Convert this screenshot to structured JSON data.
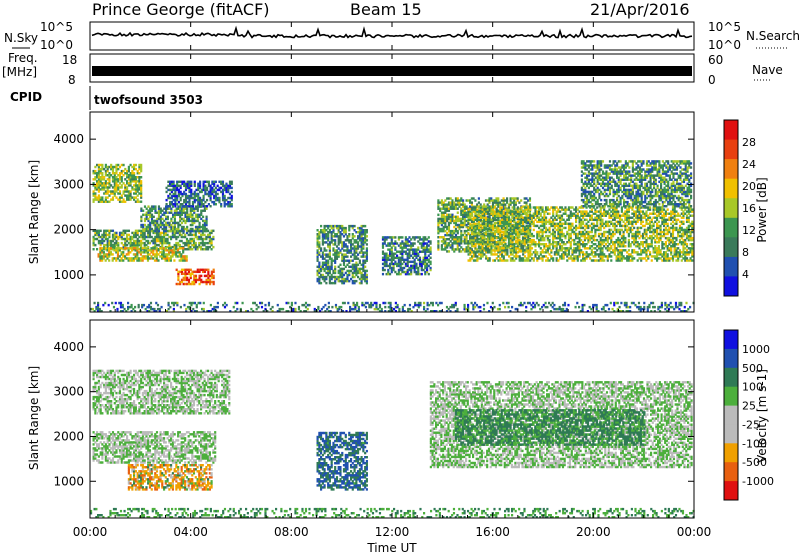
{
  "header": {
    "title": "Prince George (fitACF)",
    "beam": "Beam 15",
    "date": "21/Apr/2016"
  },
  "top_panels": {
    "nsky_label": "N.Sky",
    "nsearch_label": "N.Search",
    "noise_ticks_left": [
      "10^5",
      "10^0"
    ],
    "noise_ticks_right": [
      "10^5",
      "10^0"
    ],
    "freq_label_1": "Freq.",
    "freq_label_2": "[MHz]",
    "freq_ticks": [
      "18",
      "8"
    ],
    "nave_label": "Nave",
    "nave_ticks": [
      "60",
      "0"
    ],
    "cpid_label": "CPID",
    "cpid_value": "twofsound 3503"
  },
  "colors": {
    "power_scale": [
      "#1010e0",
      "#2050b0",
      "#3a7a5a",
      "#3c9650",
      "#a8c828",
      "#f0c000",
      "#f08010",
      "#e84010",
      "#e01010"
    ],
    "velocity_scale": [
      "#1010e0",
      "#2050b0",
      "#2f7a55",
      "#4caf3c",
      "#bbbbbb",
      "#bbbbbb",
      "#f0a000",
      "#e86010",
      "#e01010"
    ]
  },
  "chart_data": [
    {
      "type": "heatmap",
      "name": "power",
      "xlabel": "",
      "ylabel": "Slant Range [km]",
      "xlim": [
        0,
        24
      ],
      "ylim": [
        180,
        4600
      ],
      "yticks": [
        1000,
        2000,
        3000,
        4000
      ],
      "xticks": [
        0,
        4,
        8,
        12,
        16,
        20,
        24
      ],
      "colorbar_label": "Power [dB]",
      "colorbar_ticks": [
        "28",
        "24",
        "20",
        "16",
        "12",
        "8",
        "4"
      ],
      "colorbar_range": [
        0,
        30
      ],
      "grid": false,
      "regions": [
        {
          "t0": 0.1,
          "t1": 4.9,
          "r0": 1550,
          "r1": 2000,
          "v": 12
        },
        {
          "t0": 0.1,
          "t1": 2.0,
          "r0": 2600,
          "r1": 3450,
          "v": 14
        },
        {
          "t0": 0.3,
          "t1": 3.8,
          "r0": 1300,
          "r1": 1600,
          "v": 16
        },
        {
          "t0": 2.0,
          "t1": 4.6,
          "r0": 1950,
          "r1": 2500,
          "v": 10
        },
        {
          "t0": 3.0,
          "t1": 5.6,
          "r0": 2500,
          "r1": 3050,
          "v": 6
        },
        {
          "t0": 3.4,
          "t1": 4.9,
          "r0": 780,
          "r1": 1120,
          "v": 24
        },
        {
          "t0": 9.0,
          "t1": 11.0,
          "r0": 800,
          "r1": 2100,
          "v": 10
        },
        {
          "t0": 11.6,
          "t1": 13.5,
          "r0": 1000,
          "r1": 1850,
          "v": 8
        },
        {
          "t0": 13.8,
          "t1": 17.5,
          "r0": 1500,
          "r1": 2700,
          "v": 12
        },
        {
          "t0": 15.0,
          "t1": 23.9,
          "r0": 1300,
          "r1": 2500,
          "v": 14
        },
        {
          "t0": 19.5,
          "t1": 23.9,
          "r0": 2500,
          "r1": 3500,
          "v": 10
        },
        {
          "t0": 0.0,
          "t1": 24.0,
          "r0": 180,
          "r1": 400,
          "v": 8
        }
      ]
    },
    {
      "type": "heatmap",
      "name": "velocity",
      "xlabel": "Time UT",
      "ylabel": "Slant Range [km]",
      "xlim": [
        0,
        24
      ],
      "ylim": [
        180,
        4600
      ],
      "yticks": [
        1000,
        2000,
        3000,
        4000
      ],
      "xticks": [
        0,
        4,
        8,
        12,
        16,
        20,
        24
      ],
      "xticklabels": [
        "00:00",
        "04:00",
        "08:00",
        "12:00",
        "16:00",
        "20:00",
        "00:00"
      ],
      "colorbar_label": "Velocity [m s-1]",
      "colorbar_ticks": [
        "1000",
        "500",
        "100",
        "25",
        "-25",
        "-100",
        "-500",
        "-1000"
      ],
      "regions": [
        {
          "t0": 0.1,
          "t1": 5.0,
          "r0": 1400,
          "r1": 2100,
          "v": 0
        },
        {
          "t0": 0.1,
          "t1": 5.5,
          "r0": 2500,
          "r1": 3450,
          "v": 0
        },
        {
          "t0": 1.5,
          "t1": 4.8,
          "r0": 800,
          "r1": 1350,
          "v": -150
        },
        {
          "t0": 9.0,
          "t1": 11.0,
          "r0": 800,
          "r1": 2100,
          "v": 300
        },
        {
          "t0": 13.5,
          "t1": 23.9,
          "r0": 1300,
          "r1": 3200,
          "v": 0
        },
        {
          "t0": 14.5,
          "t1": 22.0,
          "r0": 1800,
          "r1": 2600,
          "v": 80
        },
        {
          "t0": 0.0,
          "t1": 24.0,
          "r0": 180,
          "r1": 400,
          "v": 60
        }
      ]
    }
  ]
}
